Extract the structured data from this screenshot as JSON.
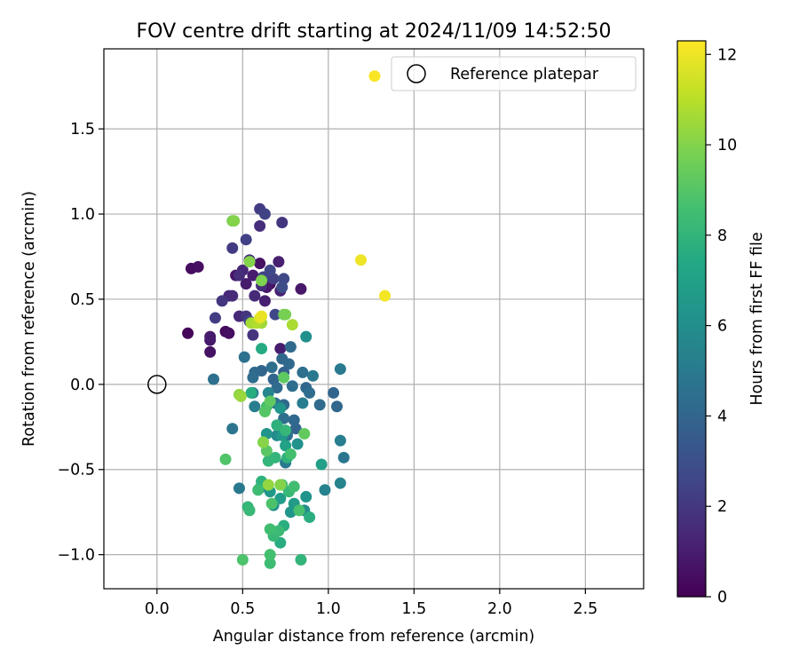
{
  "chart_data": {
    "type": "scatter",
    "title": "FOV centre drift starting at 2024/11/09 14:52:50",
    "xlabel": "Angular distance from reference (arcmin)",
    "ylabel": "Rotation from reference (arcmin)",
    "xlim": [
      -0.31,
      2.84
    ],
    "ylim": [
      -1.2,
      1.97
    ],
    "xticks": [
      0.0,
      0.5,
      1.0,
      1.5,
      2.0,
      2.5
    ],
    "xtick_labels": [
      "0.0",
      "0.5",
      "1.0",
      "1.5",
      "2.0",
      "2.5"
    ],
    "yticks": [
      -1.0,
      -0.5,
      0.0,
      0.5,
      1.0,
      1.5
    ],
    "ytick_labels": [
      "−1.0",
      "−0.5",
      "0.0",
      "0.5",
      "1.0",
      "1.5"
    ],
    "grid": true,
    "legend": {
      "placement": "upper right",
      "entries": [
        "Reference platepar"
      ]
    },
    "reference_point": {
      "x": 0.0,
      "y": 0.0,
      "name": "Reference platepar"
    },
    "colorbar": {
      "label": "Hours from first FF file",
      "colormap": "viridis",
      "range": [
        0,
        12.3
      ],
      "ticks": [
        0,
        2,
        4,
        6,
        8,
        10,
        12
      ],
      "tick_labels": [
        "0",
        "2",
        "4",
        "6",
        "8",
        "10",
        "12"
      ]
    },
    "points": [
      {
        "x": 0.18,
        "y": 0.3,
        "h": 0.2
      },
      {
        "x": 0.2,
        "y": 0.68,
        "h": 0.4
      },
      {
        "x": 0.24,
        "y": 0.69,
        "h": 0.5
      },
      {
        "x": 0.31,
        "y": 0.19,
        "h": 0.6
      },
      {
        "x": 0.31,
        "y": 0.26,
        "h": 0.8
      },
      {
        "x": 0.31,
        "y": 0.28,
        "h": 0.9
      },
      {
        "x": 0.4,
        "y": 0.31,
        "h": 0.3
      },
      {
        "x": 0.42,
        "y": 0.3,
        "h": 0.5
      },
      {
        "x": 0.46,
        "y": 0.64,
        "h": 0.7
      },
      {
        "x": 0.52,
        "y": 0.59,
        "h": 0.9
      },
      {
        "x": 0.56,
        "y": 0.64,
        "h": 1.0
      },
      {
        "x": 0.6,
        "y": 0.71,
        "h": 0.6
      },
      {
        "x": 0.64,
        "y": 0.57,
        "h": 0.8
      },
      {
        "x": 0.66,
        "y": 0.59,
        "h": 0.5
      },
      {
        "x": 0.71,
        "y": 0.72,
        "h": 1.1
      },
      {
        "x": 0.72,
        "y": 0.55,
        "h": 1.2
      },
      {
        "x": 0.84,
        "y": 0.56,
        "h": 0.8
      },
      {
        "x": 0.72,
        "y": 0.21,
        "h": 1.0
      },
      {
        "x": 0.42,
        "y": 0.52,
        "h": 1.3
      },
      {
        "x": 0.44,
        "y": 0.52,
        "h": 1.5
      },
      {
        "x": 0.48,
        "y": 0.64,
        "h": 1.6
      },
      {
        "x": 0.5,
        "y": 0.67,
        "h": 1.4
      },
      {
        "x": 0.54,
        "y": 0.73,
        "h": 1.7
      },
      {
        "x": 0.57,
        "y": 0.52,
        "h": 1.5
      },
      {
        "x": 0.61,
        "y": 0.58,
        "h": 1.6
      },
      {
        "x": 0.63,
        "y": 0.49,
        "h": 1.1
      },
      {
        "x": 0.66,
        "y": 0.63,
        "h": 1.8
      },
      {
        "x": 0.52,
        "y": 0.4,
        "h": 1.9
      },
      {
        "x": 0.48,
        "y": 0.4,
        "h": 1.4
      },
      {
        "x": 0.56,
        "y": 0.29,
        "h": 1.8
      },
      {
        "x": 0.34,
        "y": 0.39,
        "h": 2.2
      },
      {
        "x": 0.44,
        "y": 0.8,
        "h": 2.1
      },
      {
        "x": 0.52,
        "y": 0.85,
        "h": 2.3
      },
      {
        "x": 0.6,
        "y": 0.93,
        "h": 1.6
      },
      {
        "x": 0.6,
        "y": 1.03,
        "h": 2.2
      },
      {
        "x": 0.63,
        "y": 1.0,
        "h": 2.4
      },
      {
        "x": 0.73,
        "y": 0.95,
        "h": 1.9
      },
      {
        "x": 0.62,
        "y": 0.63,
        "h": 2.4
      },
      {
        "x": 0.66,
        "y": 0.67,
        "h": 2.6
      },
      {
        "x": 0.68,
        "y": 0.62,
        "h": 2.3
      },
      {
        "x": 0.74,
        "y": 0.62,
        "h": 2.7
      },
      {
        "x": 0.73,
        "y": 0.57,
        "h": 2.9
      },
      {
        "x": 0.69,
        "y": 0.41,
        "h": 2.6
      },
      {
        "x": 0.54,
        "y": 0.37,
        "h": 2.5
      },
      {
        "x": 0.38,
        "y": 0.49,
        "h": 1.9
      },
      {
        "x": 0.33,
        "y": 0.03,
        "h": 4.6
      },
      {
        "x": 0.44,
        "y": -0.26,
        "h": 4.8
      },
      {
        "x": 0.48,
        "y": -0.61,
        "h": 4.9
      },
      {
        "x": 0.51,
        "y": 0.16,
        "h": 4.6
      },
      {
        "x": 0.56,
        "y": 0.04,
        "h": 4.4
      },
      {
        "x": 0.56,
        "y": -0.05,
        "h": 5.0
      },
      {
        "x": 0.57,
        "y": -0.13,
        "h": 5.2
      },
      {
        "x": 0.57,
        "y": 0.07,
        "h": 4.2
      },
      {
        "x": 0.61,
        "y": 0.08,
        "h": 4.0
      },
      {
        "x": 0.6,
        "y": -0.61,
        "h": 5.4
      },
      {
        "x": 0.65,
        "y": -0.05,
        "h": 5.6
      },
      {
        "x": 0.67,
        "y": 0.1,
        "h": 4.5
      },
      {
        "x": 0.68,
        "y": 0.03,
        "h": 4.1
      },
      {
        "x": 0.7,
        "y": -0.02,
        "h": 4.3
      },
      {
        "x": 0.69,
        "y": -0.11,
        "h": 4.7
      },
      {
        "x": 0.7,
        "y": -0.24,
        "h": 5.3
      },
      {
        "x": 0.7,
        "y": -0.3,
        "h": 5.8
      },
      {
        "x": 0.73,
        "y": 0.15,
        "h": 4.1
      },
      {
        "x": 0.74,
        "y": -0.12,
        "h": 4.2
      },
      {
        "x": 0.74,
        "y": 0.07,
        "h": 3.8
      },
      {
        "x": 0.74,
        "y": -0.2,
        "h": 4.5
      },
      {
        "x": 0.75,
        "y": -0.46,
        "h": 5.0
      },
      {
        "x": 0.76,
        "y": -0.3,
        "h": 4.6
      },
      {
        "x": 0.77,
        "y": 0.12,
        "h": 4.2
      },
      {
        "x": 0.78,
        "y": 0.22,
        "h": 4.3
      },
      {
        "x": 0.79,
        "y": -0.01,
        "h": 4.4
      },
      {
        "x": 0.8,
        "y": -0.21,
        "h": 4.2
      },
      {
        "x": 0.81,
        "y": -0.26,
        "h": 4.0
      },
      {
        "x": 0.85,
        "y": 0.07,
        "h": 4.5
      },
      {
        "x": 0.85,
        "y": -0.11,
        "h": 5.2
      },
      {
        "x": 0.87,
        "y": -0.02,
        "h": 4.1
      },
      {
        "x": 0.87,
        "y": 0.28,
        "h": 6.1
      },
      {
        "x": 0.89,
        "y": -0.05,
        "h": 4.4
      },
      {
        "x": 0.91,
        "y": 0.05,
        "h": 4.9
      },
      {
        "x": 0.95,
        "y": -0.12,
        "h": 4.3
      },
      {
        "x": 0.98,
        "y": -0.62,
        "h": 5.4
      },
      {
        "x": 1.03,
        "y": -0.05,
        "h": 4.0
      },
      {
        "x": 1.05,
        "y": -0.13,
        "h": 4.1
      },
      {
        "x": 1.07,
        "y": 0.09,
        "h": 5.0
      },
      {
        "x": 1.07,
        "y": -0.33,
        "h": 5.2
      },
      {
        "x": 1.07,
        "y": -0.58,
        "h": 5.5
      },
      {
        "x": 1.09,
        "y": -0.43,
        "h": 4.8
      },
      {
        "x": 0.64,
        "y": -0.29,
        "h": 6.3
      },
      {
        "x": 0.66,
        "y": -0.63,
        "h": 6.5
      },
      {
        "x": 0.68,
        "y": -0.71,
        "h": 6.1
      },
      {
        "x": 0.72,
        "y": -0.14,
        "h": 6.4
      },
      {
        "x": 0.72,
        "y": -0.67,
        "h": 6.8
      },
      {
        "x": 0.73,
        "y": -0.3,
        "h": 6.6
      },
      {
        "x": 0.75,
        "y": -0.36,
        "h": 7.0
      },
      {
        "x": 0.78,
        "y": -0.75,
        "h": 6.4
      },
      {
        "x": 0.8,
        "y": -0.7,
        "h": 6.7
      },
      {
        "x": 0.82,
        "y": -0.35,
        "h": 6.2
      },
      {
        "x": 0.86,
        "y": -0.74,
        "h": 6.0
      },
      {
        "x": 0.87,
        "y": -0.66,
        "h": 6.3
      },
      {
        "x": 0.96,
        "y": -0.47,
        "h": 6.9
      },
      {
        "x": 0.61,
        "y": 0.21,
        "h": 7.5
      },
      {
        "x": 0.53,
        "y": -0.72,
        "h": 8.0
      },
      {
        "x": 0.54,
        "y": -0.74,
        "h": 8.2
      },
      {
        "x": 0.55,
        "y": -0.05,
        "h": 7.6
      },
      {
        "x": 0.59,
        "y": -0.62,
        "h": 8.4
      },
      {
        "x": 0.61,
        "y": -0.57,
        "h": 7.9
      },
      {
        "x": 0.62,
        "y": -0.34,
        "h": 8.3
      },
      {
        "x": 0.64,
        "y": -0.13,
        "h": 8.6
      },
      {
        "x": 0.65,
        "y": -0.45,
        "h": 8.1
      },
      {
        "x": 0.66,
        "y": -0.85,
        "h": 8.5
      },
      {
        "x": 0.67,
        "y": -0.7,
        "h": 8.8
      },
      {
        "x": 0.68,
        "y": -0.89,
        "h": 8.2
      },
      {
        "x": 0.69,
        "y": -0.43,
        "h": 8.0
      },
      {
        "x": 0.7,
        "y": -0.24,
        "h": 7.8
      },
      {
        "x": 0.71,
        "y": -0.86,
        "h": 8.3
      },
      {
        "x": 0.72,
        "y": -0.93,
        "h": 7.6
      },
      {
        "x": 0.73,
        "y": -0.59,
        "h": 8.4
      },
      {
        "x": 0.74,
        "y": -0.83,
        "h": 7.7
      },
      {
        "x": 0.75,
        "y": -0.27,
        "h": 8.1
      },
      {
        "x": 0.76,
        "y": -0.43,
        "h": 7.9
      },
      {
        "x": 0.77,
        "y": -0.63,
        "h": 8.2
      },
      {
        "x": 0.78,
        "y": -0.41,
        "h": 8.6
      },
      {
        "x": 0.8,
        "y": -0.6,
        "h": 8.5
      },
      {
        "x": 0.83,
        "y": -0.74,
        "h": 8.7
      },
      {
        "x": 0.84,
        "y": -1.03,
        "h": 8.0
      },
      {
        "x": 0.89,
        "y": -0.78,
        "h": 7.7
      },
      {
        "x": 0.66,
        "y": -1.05,
        "h": 8.4
      },
      {
        "x": 0.66,
        "y": -1.0,
        "h": 8.6
      },
      {
        "x": 0.5,
        "y": -1.03,
        "h": 8.8
      },
      {
        "x": 0.4,
        "y": -0.44,
        "h": 8.9
      },
      {
        "x": 0.63,
        "y": -0.16,
        "h": 9.0
      },
      {
        "x": 0.64,
        "y": -0.39,
        "h": 9.1
      },
      {
        "x": 0.66,
        "y": -0.1,
        "h": 9.2
      },
      {
        "x": 0.72,
        "y": -0.59,
        "h": 9.4
      },
      {
        "x": 0.86,
        "y": -0.29,
        "h": 9.3
      },
      {
        "x": 0.74,
        "y": 0.04,
        "h": 9.2
      },
      {
        "x": 0.74,
        "y": 0.41,
        "h": 9.6
      },
      {
        "x": 0.75,
        "y": 0.41,
        "h": 9.8
      },
      {
        "x": 0.61,
        "y": 0.61,
        "h": 9.9
      },
      {
        "x": 0.54,
        "y": 0.72,
        "h": 10.0
      },
      {
        "x": 0.45,
        "y": 0.96,
        "h": 10.0
      },
      {
        "x": 0.44,
        "y": 0.96,
        "h": 9.8
      },
      {
        "x": 0.62,
        "y": -0.34,
        "h": 10.1
      },
      {
        "x": 0.65,
        "y": -0.59,
        "h": 10.3
      },
      {
        "x": 0.72,
        "y": -0.59,
        "h": 10.0
      },
      {
        "x": 0.48,
        "y": -0.06,
        "h": 10.2
      },
      {
        "x": 0.49,
        "y": -0.07,
        "h": 10.4
      },
      {
        "x": 0.55,
        "y": 0.36,
        "h": 10.6
      },
      {
        "x": 0.58,
        "y": 0.36,
        "h": 10.8
      },
      {
        "x": 0.61,
        "y": 0.36,
        "h": 10.5
      },
      {
        "x": 0.79,
        "y": 0.35,
        "h": 10.7
      },
      {
        "x": 0.6,
        "y": 0.39,
        "h": 11.7
      },
      {
        "x": 0.61,
        "y": 0.4,
        "h": 11.9
      },
      {
        "x": 1.27,
        "y": 1.81,
        "h": 12.2
      },
      {
        "x": 1.19,
        "y": 0.73,
        "h": 12.0
      },
      {
        "x": 1.33,
        "y": 0.52,
        "h": 12.1
      }
    ]
  }
}
